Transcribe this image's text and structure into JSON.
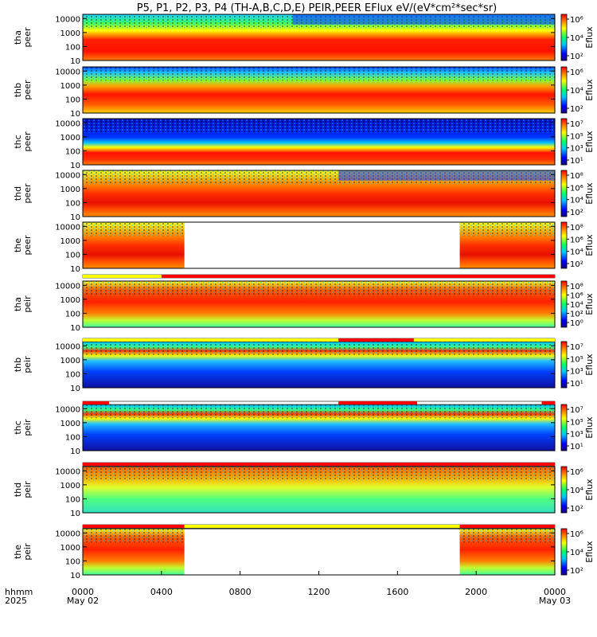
{
  "chart_data": {
    "type": "heatmap",
    "title": "P5, P1, P2, P3, P4 (TH-A,B,C,D,E) PEIR,PEER EFlux eV/(eV*cm²*sec*sr)",
    "x_axis": {
      "row_label_1": "hhmm",
      "row_label_2": "2025",
      "range_hhmm": [
        "0000",
        "2400"
      ],
      "ticks": [
        "0000",
        "0400",
        "0800",
        "1200",
        "1600",
        "2000",
        "0000"
      ],
      "date_labels": [
        "May 02",
        "May 03"
      ]
    },
    "y_axis": {
      "scale": "log",
      "unit_note": "energy (eV)",
      "range": [
        10,
        20000
      ],
      "ticks": [
        "10",
        "100",
        "1000",
        "10000"
      ]
    },
    "colorbar_label": "Eflux",
    "panels": [
      {
        "probe": "tha",
        "species": "peer",
        "cbar_ticks": [
          "10²",
          "10⁴",
          "10⁶"
        ],
        "data_gap_hhmm": null,
        "dense_from_hhmm": 1040
      },
      {
        "probe": "thb",
        "species": "peer",
        "cbar_ticks": [
          "10²",
          "10⁴",
          "10⁶"
        ],
        "data_gap_hhmm": null
      },
      {
        "probe": "thc",
        "species": "peer",
        "cbar_ticks": [
          "10¹",
          "10³",
          "10⁵",
          "10⁷"
        ],
        "data_gap_hhmm": null
      },
      {
        "probe": "thd",
        "species": "peer",
        "cbar_ticks": [
          "10²",
          "10⁴",
          "10⁶",
          "10⁸"
        ],
        "data_gap_hhmm": null,
        "dense_from_hhmm": 1300
      },
      {
        "probe": "the",
        "species": "peer",
        "cbar_ticks": [
          "10²",
          "10⁴",
          "10⁶",
          "10⁸"
        ],
        "data_gap_hhmm": [
          510,
          1910
        ]
      },
      {
        "probe": "tha",
        "species": "peir",
        "cbar_ticks": [
          "10⁰",
          "10²",
          "10⁴",
          "10⁶",
          "10⁸"
        ],
        "data_gap_hhmm": null
      },
      {
        "probe": "thb",
        "species": "peir",
        "cbar_ticks": [
          "10¹",
          "10³",
          "10⁵",
          "10⁷"
        ],
        "data_gap_hhmm": null
      },
      {
        "probe": "thc",
        "species": "peir",
        "cbar_ticks": [
          "10¹",
          "10³",
          "10⁵",
          "10⁷"
        ],
        "data_gap_hhmm": null
      },
      {
        "probe": "thd",
        "species": "peir",
        "cbar_ticks": [
          "10²",
          "10⁴",
          "10⁶"
        ],
        "data_gap_hhmm": null
      },
      {
        "probe": "the",
        "species": "peir",
        "cbar_ticks": [
          "10²",
          "10⁴",
          "10⁶"
        ],
        "data_gap_hhmm": [
          510,
          1910
        ]
      }
    ],
    "mode_bars": [
      [
        {
          "from_hhmm": 0,
          "to_hhmm": 400,
          "color": "#ffff00"
        },
        {
          "from_hhmm": 400,
          "to_hhmm": 2400,
          "color": "#ff0000"
        }
      ],
      [
        {
          "from_hhmm": 0,
          "to_hhmm": 1300,
          "color": "#ffff00"
        },
        {
          "from_hhmm": 1300,
          "to_hhmm": 1650,
          "color": "#ff0000"
        },
        {
          "from_hhmm": 1650,
          "to_hhmm": 2400,
          "color": "#ffff00"
        }
      ],
      [
        {
          "from_hhmm": 0,
          "to_hhmm": 120,
          "color": "#ff0000"
        },
        {
          "from_hhmm": 1300,
          "to_hhmm": 1700,
          "color": "#ff0000"
        },
        {
          "from_hhmm": 2320,
          "to_hhmm": 2400,
          "color": "#ff0000"
        }
      ],
      [
        {
          "from_hhmm": 0,
          "to_hhmm": 2400,
          "color": "#ff0000"
        }
      ],
      [
        {
          "from_hhmm": 0,
          "to_hhmm": 510,
          "color": "#ff0000"
        },
        {
          "from_hhmm": 510,
          "to_hhmm": 1910,
          "color": "#ffff00"
        },
        {
          "from_hhmm": 1910,
          "to_hhmm": 2400,
          "color": "#ff0000"
        }
      ]
    ]
  }
}
